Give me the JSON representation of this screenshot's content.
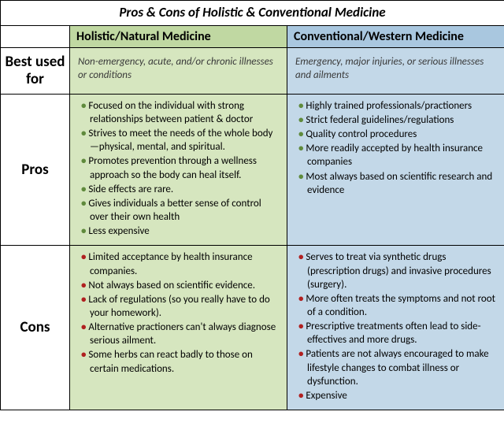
{
  "title": "Pros & Cons of Holistic & Conventional Medicine",
  "colors": {
    "holistic_header": "#c0d8a2",
    "holistic_body": "#d6e6bf",
    "conventional_header": "#a9c7df",
    "conventional_body": "#c3d8e8",
    "pro_bullet": "#5f8a3c",
    "con_bullet": "#b02020"
  },
  "columns": {
    "holistic": "Holistic/Natural Medicine",
    "conventional": "Conventional/Western Medicine"
  },
  "rows": {
    "best": {
      "label": "Best used for",
      "holistic": "Non-emergency, acute, and/or chronic illnesses or conditions",
      "conventional": "Emergency, major injuries, or serious illnesses and ailments"
    },
    "pros": {
      "label": "Pros",
      "holistic": [
        "Focused on the individual with strong relationships between patient & doctor",
        "Strives to meet the needs of the whole body—physical, mental, and spiritual.",
        "Promotes prevention through a wellness approach so the body can heal itself.",
        "Side effects are rare.",
        "Gives individuals a better sense of control over their own health",
        "Less expensive"
      ],
      "conventional": [
        "Highly trained professionals/practioners",
        "Strict federal guidelines/regulations",
        "Quality control procedures",
        "More readily accepted by health insurance companies",
        "Most always based on scientific research and evidence"
      ]
    },
    "cons": {
      "label": "Cons",
      "holistic": [
        "Limited acceptance by health insurance companies.",
        "Not always based on scientific evidence.",
        "Lack of regulations (so you really have to do your homework).",
        "Alternative practioners can't always diagnose serious ailment.",
        "Some herbs can react badly to those on certain medications."
      ],
      "conventional": [
        "Serves to treat via synthetic drugs (prescription drugs) and invasive procedures (surgery).",
        "More often treats the symptoms and not root of a condition.",
        "Prescriptive treatments often lead to side-effectives and more drugs.",
        "Patients are not always encouraged to make lifestyle changes to combat illness or dysfunction.",
        "Expensive"
      ]
    }
  }
}
